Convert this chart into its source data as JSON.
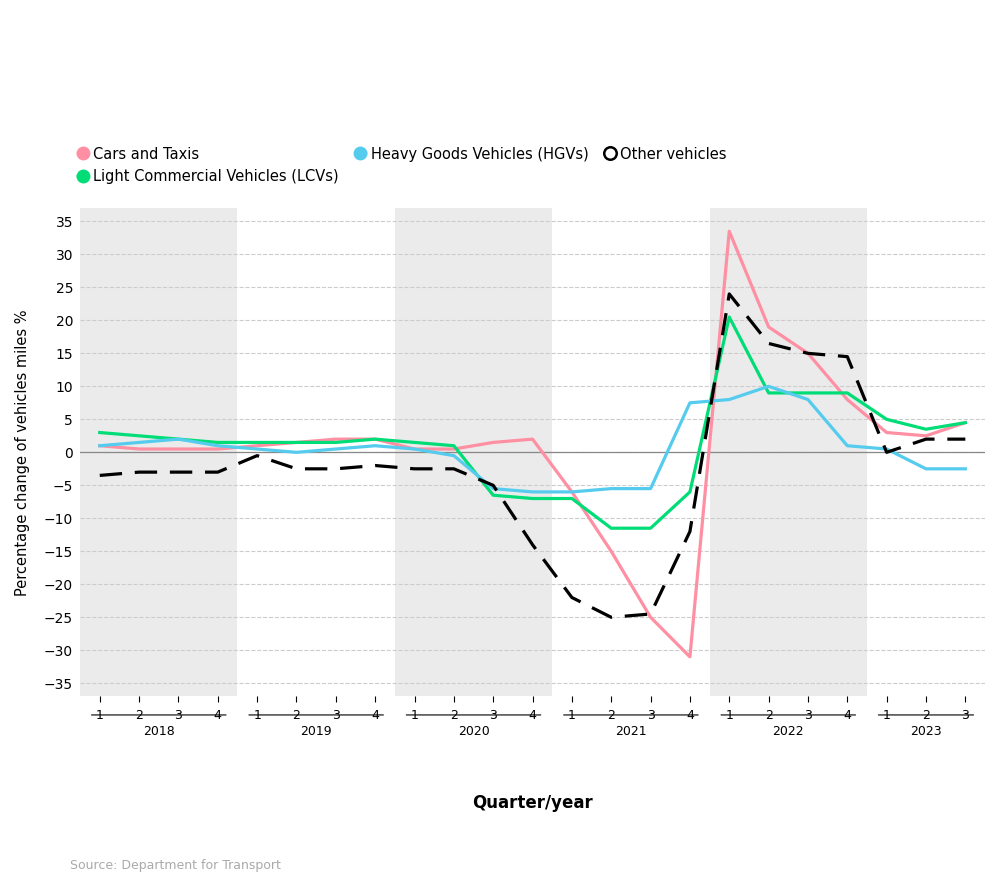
{
  "xlabel": "Quarter/year",
  "ylabel": "Percentage change of vehicles miles %",
  "source": "Source: Department for Transport",
  "ylim": [
    -37,
    37
  ],
  "yticks": [
    -35,
    -30,
    -25,
    -20,
    -15,
    -10,
    -5,
    0,
    5,
    10,
    15,
    20,
    25,
    30,
    35
  ],
  "years": [
    2018,
    2019,
    2020,
    2021,
    2022,
    2023
  ],
  "q_counts": [
    4,
    4,
    4,
    4,
    4,
    3
  ],
  "shaded_years": [
    2018,
    2020,
    2022
  ],
  "legend_entries": [
    {
      "label": "Cars and Taxis",
      "color": "#FF8FA3",
      "linestyle": "solid"
    },
    {
      "label": "Light Commercial Vehicles (LCVs)",
      "color": "#00DD77",
      "linestyle": "solid"
    },
    {
      "label": "Heavy Goods Vehicles (HGVs)",
      "color": "#55CCEE",
      "linestyle": "solid"
    },
    {
      "label": "Other vehicles",
      "color": "#000000",
      "linestyle": "dashed"
    }
  ],
  "cars_taxis": [
    1.0,
    0.5,
    0.5,
    0.5,
    1.0,
    1.5,
    2.0,
    2.0,
    0.5,
    0.5,
    1.5,
    2.0,
    -6.0,
    -15.0,
    -25.0,
    -31.0,
    33.5,
    19.0,
    15.0,
    8.0,
    3.0,
    2.5,
    4.5
  ],
  "lcvs": [
    3.0,
    2.5,
    2.0,
    1.5,
    1.5,
    1.5,
    1.5,
    2.0,
    1.5,
    1.0,
    -6.5,
    -7.0,
    -7.0,
    -11.5,
    -11.5,
    -6.0,
    20.5,
    9.0,
    9.0,
    9.0,
    5.0,
    3.5,
    4.5
  ],
  "hgvs": [
    1.0,
    1.5,
    2.0,
    1.0,
    0.5,
    0.0,
    0.5,
    1.0,
    0.5,
    -0.5,
    -5.5,
    -6.0,
    -6.0,
    -5.5,
    -5.5,
    7.5,
    8.0,
    10.0,
    8.0,
    1.0,
    0.5,
    -2.5,
    -2.5
  ],
  "other": [
    -3.5,
    -3.0,
    -3.0,
    -3.0,
    -0.5,
    -2.5,
    -2.5,
    -2.0,
    -2.5,
    -2.5,
    -5.0,
    -14.0,
    -22.0,
    -25.0,
    -24.5,
    -12.0,
    24.0,
    16.5,
    15.0,
    14.5,
    0.0,
    2.0,
    2.0
  ],
  "background_color": "#FFFFFF",
  "grid_color": "#CCCCCC",
  "shaded_color": "#EBEBEB"
}
